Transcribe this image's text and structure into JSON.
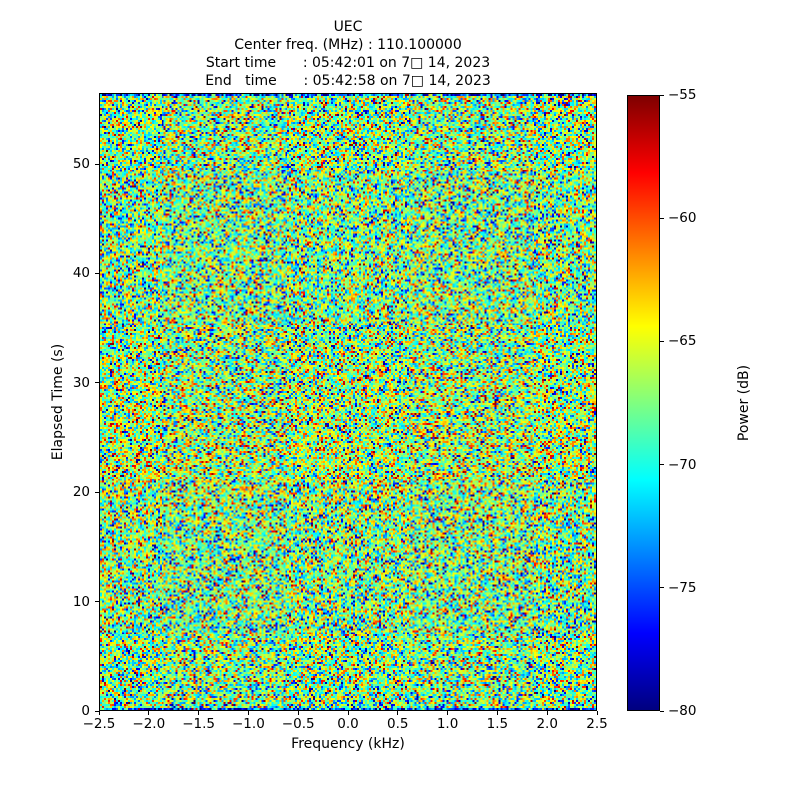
{
  "header": {
    "title": "UEC",
    "center_freq_line": "Center freq. (MHz) : 110.100000",
    "start_time_line": "Start time      : 05:42:01 on 7□ 14, 2023",
    "end_time_line": "End   time      : 05:42:58 on 7□ 14, 2023"
  },
  "chart_data": {
    "type": "heatmap",
    "title": "UEC",
    "subtitle_lines": [
      "Center freq. (MHz) : 110.100000",
      "Start time      : 05:42:01 on 7□ 14, 2023",
      "End   time      : 05:42:58 on 7□ 14, 2023"
    ],
    "xlabel": "Frequency (kHz)",
    "ylabel": "Elapsed Time (s)",
    "xlim": [
      -2.5,
      2.5
    ],
    "ylim": [
      0,
      56.5
    ],
    "x_axis": {
      "ticks": [
        {
          "value": -2.5,
          "label": "−2.5"
        },
        {
          "value": -2.0,
          "label": "−2.0"
        },
        {
          "value": -1.5,
          "label": "−1.5"
        },
        {
          "value": -1.0,
          "label": "−1.0"
        },
        {
          "value": -0.5,
          "label": "−0.5"
        },
        {
          "value": 0.0,
          "label": "0.0"
        },
        {
          "value": 0.5,
          "label": "0.5"
        },
        {
          "value": 1.0,
          "label": "1.0"
        },
        {
          "value": 1.5,
          "label": "1.5"
        },
        {
          "value": 2.0,
          "label": "2.0"
        },
        {
          "value": 2.5,
          "label": "2.5"
        }
      ]
    },
    "y_axis": {
      "ticks": [
        {
          "value": 0,
          "label": "0"
        },
        {
          "value": 10,
          "label": "10"
        },
        {
          "value": 20,
          "label": "20"
        },
        {
          "value": 30,
          "label": "30"
        },
        {
          "value": 40,
          "label": "40"
        },
        {
          "value": 50,
          "label": "50"
        }
      ]
    },
    "colorbar": {
      "label": "Power (dB)",
      "range": [
        -80,
        -55
      ],
      "colormap": "jet",
      "ticks": [
        {
          "value": -55,
          "label": "−55"
        },
        {
          "value": -60,
          "label": "−60"
        },
        {
          "value": -65,
          "label": "−65"
        },
        {
          "value": -70,
          "label": "−70"
        },
        {
          "value": -75,
          "label": "−75"
        },
        {
          "value": -80,
          "label": "−80"
        }
      ],
      "gradient_stops": [
        {
          "pos": 0.0,
          "color": "#00007f"
        },
        {
          "pos": 0.125,
          "color": "#0000ff"
        },
        {
          "pos": 0.375,
          "color": "#00ffff"
        },
        {
          "pos": 0.625,
          "color": "#ffff00"
        },
        {
          "pos": 0.875,
          "color": "#ff0000"
        },
        {
          "pos": 1.0,
          "color": "#7f0000"
        }
      ]
    },
    "noise": {
      "description": "random wideband noise spectrogram, jet colormap",
      "cols": 249,
      "rows": 309,
      "seed": 1337,
      "mean_db": -67.4,
      "sigma_db": 4.3,
      "low_spike_prob": 0.035,
      "high_spike_prob": 0.015,
      "vmin": -80,
      "vmax": -55,
      "warm_band": {
        "center_frac": 0.57,
        "width_frac": 0.09,
        "amp_db": 1.0
      },
      "edge_row_bias_db": -7
    }
  }
}
